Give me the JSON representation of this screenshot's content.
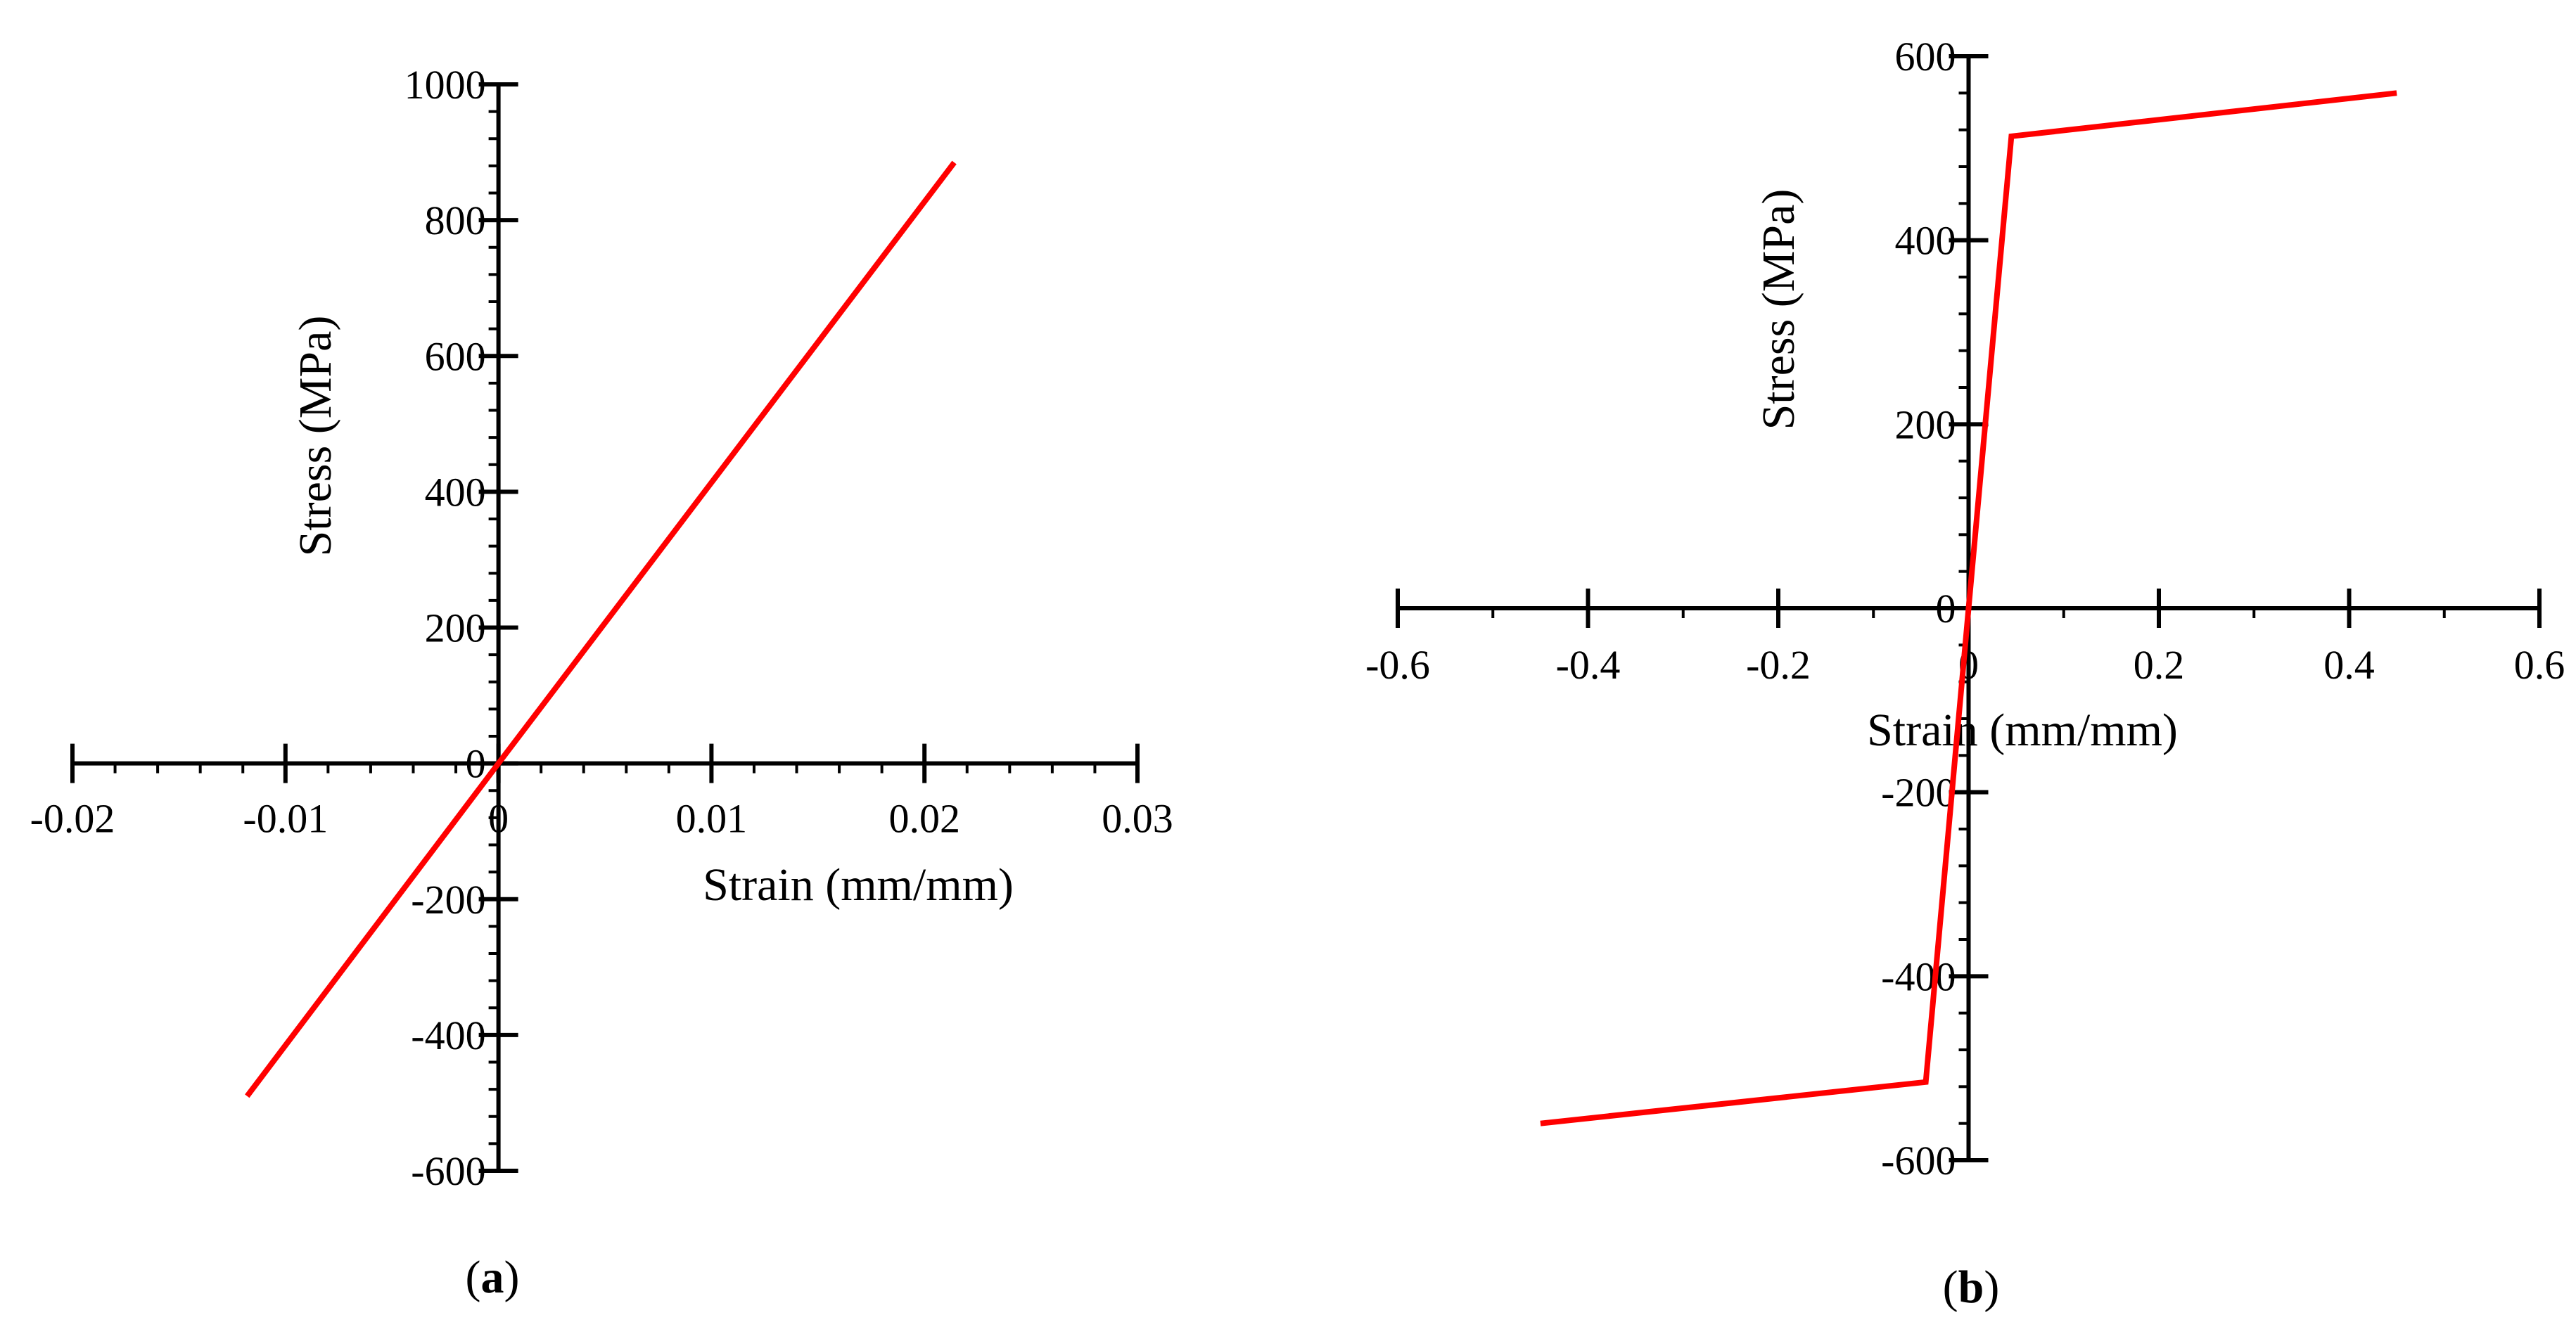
{
  "figure": {
    "panels": [
      {
        "label_open": "(",
        "label_letter": "a",
        "label_close": ")"
      },
      {
        "label_open": "(",
        "label_letter": "b",
        "label_close": ")"
      }
    ]
  },
  "chart_data": [
    {
      "type": "line",
      "panel": "a",
      "xlabel": "Strain (mm/mm)",
      "ylabel": "Stress (MPa)",
      "xlim": [
        -0.02,
        0.03
      ],
      "ylim": [
        -600,
        1000
      ],
      "xticks": [
        -0.02,
        -0.01,
        0,
        0.01,
        0.02,
        0.03
      ],
      "xtick_labels": [
        "-0.02",
        "-0.01",
        "0",
        "0.01",
        "0.02",
        "0.03"
      ],
      "yticks": [
        -600,
        -400,
        -200,
        0,
        200,
        400,
        600,
        800,
        1000
      ],
      "ytick_labels": [
        "-600",
        "-400",
        "-200",
        "0",
        "200",
        "400",
        "600",
        "800",
        "1000"
      ],
      "x_minor_step": 0.002,
      "y_minor_step": 40,
      "grid": false,
      "series": [
        {
          "color": "#ff0000",
          "x": [
            -0.0118,
            0,
            0.0214
          ],
          "y": [
            -490,
            0,
            885
          ]
        }
      ]
    },
    {
      "type": "line",
      "panel": "b",
      "xlabel": "Strain (mm/mm)",
      "ylabel": "Stress (MPa)",
      "xlim": [
        -0.6,
        0.6
      ],
      "ylim": [
        -600,
        600
      ],
      "xticks": [
        -0.6,
        -0.4,
        -0.2,
        0,
        0.2,
        0.4,
        0.6
      ],
      "xtick_labels": [
        "-0.6",
        "-0.4",
        "-0.2",
        "0",
        "0.2",
        "0.4",
        "0.6"
      ],
      "yticks": [
        -600,
        -400,
        -200,
        0,
        200,
        400,
        600
      ],
      "ytick_labels": [
        "-600",
        "-400",
        "-200",
        "0",
        "200",
        "400",
        "600"
      ],
      "x_minor_step": 0.1,
      "y_minor_step": 40,
      "grid": false,
      "series": [
        {
          "color": "#ff0000",
          "x": [
            -0.45,
            -0.045,
            0,
            0.045,
            0.45
          ],
          "y": [
            -560,
            -515,
            0,
            513,
            560
          ]
        }
      ]
    }
  ]
}
